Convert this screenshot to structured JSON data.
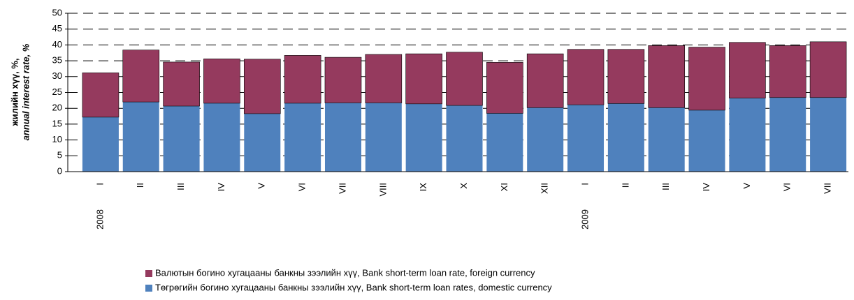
{
  "chart_data": {
    "type": "stacked_bar",
    "y_label": [
      "жилийн хүү, %,",
      "annual interest rate, %"
    ],
    "categories": [
      "I",
      "II",
      "III",
      "IV",
      "V",
      "VI",
      "VII",
      "VIII",
      "IX",
      "X",
      "XI",
      "XII",
      "I",
      "II",
      "III",
      "IV",
      "V",
      "VI",
      "VII"
    ],
    "category_years": [
      "2008",
      null,
      null,
      null,
      null,
      null,
      null,
      null,
      null,
      null,
      null,
      null,
      "2009",
      null,
      null,
      null,
      null,
      null,
      null
    ],
    "series": [
      {
        "name": "Төгрөгийн богино хугацааны банкны зээлийн хүү, Bank short-term loan rates, domestic currency",
        "color": "#4f81bd",
        "values": [
          17.2,
          22.0,
          20.7,
          21.6,
          18.3,
          21.6,
          21.7,
          21.7,
          21.4,
          20.9,
          18.4,
          20.2,
          21.1,
          21.5,
          20.2,
          19.4,
          23.2,
          23.4,
          23.4
        ]
      },
      {
        "name": "Валютын богино хугацааны банкны зээлийн хүү, Bank short-term loan rate, foreign currency",
        "color": "#953a5e",
        "values": [
          14.0,
          16.4,
          13.9,
          14.0,
          17.2,
          15.1,
          14.4,
          15.3,
          15.8,
          16.8,
          16.1,
          17.0,
          17.5,
          17.1,
          19.6,
          19.9,
          17.6,
          16.4,
          17.6
        ]
      }
    ],
    "ylim": [
      0,
      50
    ],
    "yticks": [
      0,
      5,
      10,
      15,
      20,
      25,
      30,
      35,
      40,
      45,
      50
    ],
    "grid": true
  }
}
